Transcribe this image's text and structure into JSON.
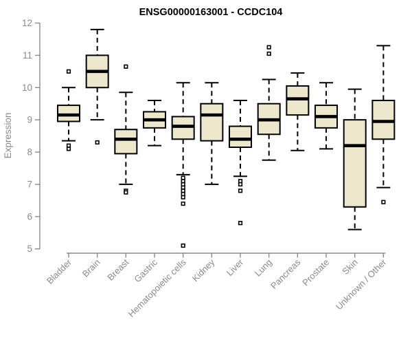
{
  "chart_data": {
    "type": "boxplot",
    "title": "ENSG00000163001 - CCDC104",
    "ylabel": "Expression",
    "xlabel": "",
    "ylim": [
      5,
      12
    ],
    "yticks": [
      5,
      6,
      7,
      8,
      9,
      10,
      11,
      12
    ],
    "grid": false,
    "legend": "none",
    "box_fill": "#EDE8CC",
    "box_stroke": "#000000",
    "median_color": "#000000",
    "axis_color": "#8a8a8a",
    "categories": [
      "Bladder",
      "Brain",
      "Breast",
      "Gastric",
      "Hematopoietic cells",
      "Kidney",
      "Liver",
      "Lung",
      "Pancreas",
      "Prostate",
      "Skin",
      "Unknown / Other"
    ],
    "series": [
      {
        "category": "Bladder",
        "whisker_low": 8.35,
        "q1": 8.95,
        "median": 9.15,
        "q3": 9.45,
        "whisker_high": 10.0,
        "outliers": [
          10.5,
          8.2,
          8.1
        ]
      },
      {
        "category": "Brain",
        "whisker_low": 9.0,
        "q1": 10.0,
        "median": 10.5,
        "q3": 11.0,
        "whisker_high": 11.8,
        "outliers": [
          8.3
        ]
      },
      {
        "category": "Breast",
        "whisker_low": 7.0,
        "q1": 7.95,
        "median": 8.4,
        "q3": 8.7,
        "whisker_high": 9.85,
        "outliers": [
          10.65,
          6.8,
          6.75
        ]
      },
      {
        "category": "Gastric",
        "whisker_low": 8.2,
        "q1": 8.75,
        "median": 9.0,
        "q3": 9.25,
        "whisker_high": 9.6,
        "outliers": []
      },
      {
        "category": "Hematopoietic cells",
        "whisker_low": 7.3,
        "q1": 8.4,
        "median": 8.8,
        "q3": 9.1,
        "whisker_high": 10.15,
        "outliers": [
          7.2,
          7.1,
          7.0,
          6.9,
          6.8,
          6.7,
          6.6,
          6.4,
          5.1
        ]
      },
      {
        "category": "Kidney",
        "whisker_low": 7.0,
        "q1": 8.35,
        "median": 9.15,
        "q3": 9.5,
        "whisker_high": 10.15,
        "outliers": []
      },
      {
        "category": "Liver",
        "whisker_low": 7.25,
        "q1": 8.15,
        "median": 8.4,
        "q3": 8.8,
        "whisker_high": 9.6,
        "outliers": [
          7.1,
          7.0,
          6.8,
          5.8
        ]
      },
      {
        "category": "Lung",
        "whisker_low": 7.75,
        "q1": 8.55,
        "median": 9.0,
        "q3": 9.5,
        "whisker_high": 10.25,
        "outliers": [
          11.25,
          11.05
        ]
      },
      {
        "category": "Pancreas",
        "whisker_low": 8.05,
        "q1": 9.15,
        "median": 9.65,
        "q3": 10.05,
        "whisker_high": 10.45,
        "outliers": []
      },
      {
        "category": "Prostate",
        "whisker_low": 8.1,
        "q1": 8.75,
        "median": 9.1,
        "q3": 9.45,
        "whisker_high": 10.15,
        "outliers": []
      },
      {
        "category": "Skin",
        "whisker_low": 5.6,
        "q1": 6.3,
        "median": 8.2,
        "q3": 9.0,
        "whisker_high": 9.95,
        "outliers": []
      },
      {
        "category": "Unknown / Other",
        "whisker_low": 6.9,
        "q1": 8.4,
        "median": 8.95,
        "q3": 9.6,
        "whisker_high": 11.3,
        "outliers": [
          6.45
        ]
      }
    ]
  }
}
